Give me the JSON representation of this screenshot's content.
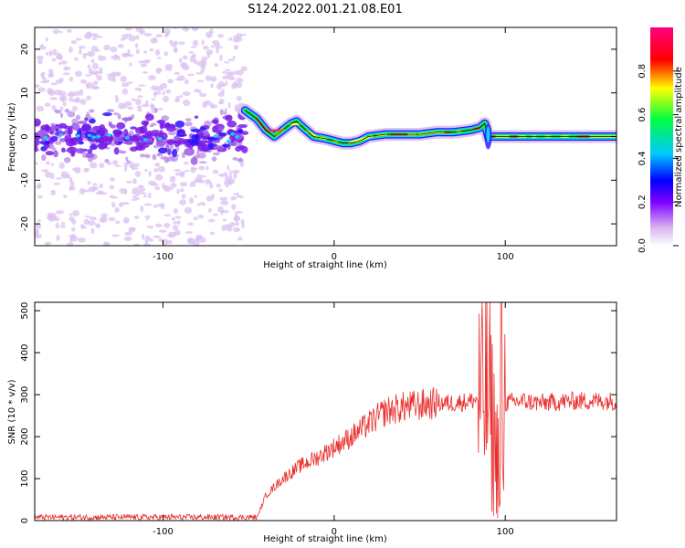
{
  "figure": {
    "title": "S124.2022.001.21.08.E01"
  },
  "chart_data": [
    {
      "type": "heatmap",
      "xlabel": "Height of straight line (km)",
      "ylabel": "Frequency (Hz)",
      "xlim": [
        -175,
        165
      ],
      "ylim": [
        -25,
        25
      ],
      "xticks": [
        -100,
        0,
        100
      ],
      "yticks": [
        -20,
        -10,
        0,
        10,
        20
      ],
      "colorbar": {
        "label": "Normalized spectral amplitude",
        "range": [
          0,
          1
        ],
        "ticks": [
          0.0,
          0.2,
          0.4,
          0.6,
          0.8
        ],
        "colormap": [
          "#ffffff",
          "#d9b8ef",
          "#7f00ff",
          "#0000ff",
          "#00c8ff",
          "#00ff40",
          "#ffff00",
          "#ff0000",
          "#ff0080"
        ]
      },
      "ridge": {
        "x": [
          -52,
          -45,
          -40,
          -35,
          -30,
          -25,
          -22,
          -18,
          -12,
          -5,
          0,
          5,
          10,
          15,
          20,
          30,
          40,
          50,
          60,
          70,
          80,
          85,
          88,
          90,
          95,
          100,
          120,
          140,
          165
        ],
        "y": [
          6,
          4,
          1.5,
          0,
          1.5,
          3,
          3.5,
          2,
          0,
          -0.5,
          -1,
          -1.5,
          -1.5,
          -1,
          0,
          0.5,
          0.5,
          0.5,
          1,
          1,
          1.5,
          2,
          3,
          0,
          0,
          0,
          0,
          0,
          0
        ]
      },
      "noise_region_x": [
        -175,
        -52
      ],
      "grid": false
    },
    {
      "type": "line",
      "xlabel": "Height of straight line (km)",
      "ylabel": "SNR (10 * v/v)",
      "xlim": [
        -175,
        165
      ],
      "ylim": [
        0,
        520
      ],
      "xticks": [
        -100,
        0,
        100
      ],
      "yticks": [
        0,
        100,
        200,
        300,
        400,
        500
      ],
      "series_color": "#e8302e",
      "envelope": {
        "x": [
          -175,
          -45,
          -40,
          -30,
          -20,
          -10,
          0,
          10,
          20,
          30,
          40,
          50,
          60,
          70,
          80,
          85,
          90,
          95,
          100,
          110,
          120,
          140,
          165
        ],
        "y": [
          8,
          8,
          60,
          100,
          130,
          150,
          175,
          200,
          230,
          260,
          270,
          275,
          280,
          280,
          285,
          290,
          300,
          150,
          280,
          285,
          280,
          285,
          285
        ]
      },
      "grid": false
    }
  ]
}
